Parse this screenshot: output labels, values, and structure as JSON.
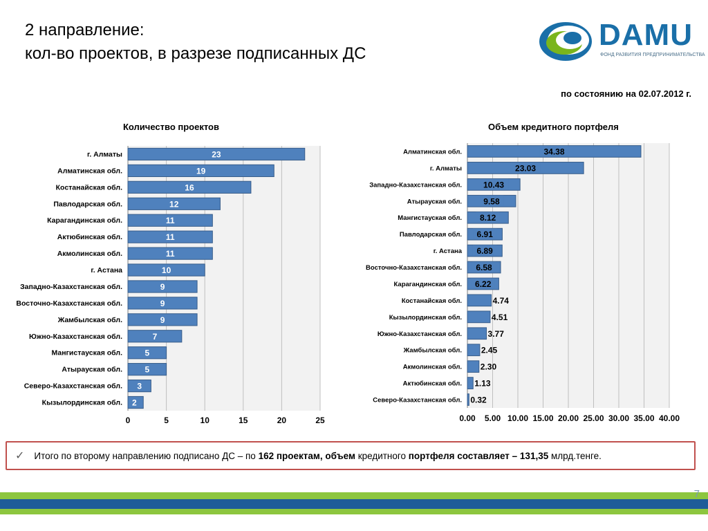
{
  "header": {
    "title_line1": "2  направление:",
    "title_line2": "кол-во проектов,  в разрезе подписанных ДС",
    "date_note": "по состоянию на 02.07.2012 г."
  },
  "logo": {
    "text": "DAMU",
    "subtitle": "ФОНД РАЗВИТИЯ ПРЕДПРИНИМАТЕЛЬСТВА",
    "colors": {
      "blue": "#1a6fa8",
      "green": "#7ab51d"
    }
  },
  "colors": {
    "bar_fill": "#4f81bd",
    "bar_stroke": "#385d8a",
    "plot_bg": "#f2f2f2",
    "grid": "#bfbfbf",
    "summary_border": "#c0504d",
    "band_green": "#8dc63f",
    "band_blue": "#1f5c99"
  },
  "chart_data": [
    {
      "type": "bar",
      "orientation": "horizontal",
      "title": "Количество проектов",
      "categories": [
        "г. Алматы",
        "Алматинская обл.",
        "Костанайская обл.",
        "Павлодарская обл.",
        "Карагандинская обл.",
        "Актюбинская обл.",
        "Акмолинская обл.",
        "г. Астана",
        "Западно-Казахстанская обл.",
        "Восточно-Казахстанская обл.",
        "Жамбылская обл.",
        "Южно-Казахстанская обл.",
        "Мангистауская обл.",
        "Атырауская обл.",
        "Северо-Казахстанская обл.",
        "Кызылординская обл."
      ],
      "values": [
        23,
        19,
        16,
        12,
        11,
        11,
        11,
        10,
        9,
        9,
        9,
        7,
        5,
        5,
        3,
        2
      ],
      "value_labels": [
        "23",
        "19",
        "16",
        "12",
        "11",
        "11",
        "11",
        "10",
        "9",
        "9",
        "9",
        "7",
        "5",
        "5",
        "3",
        "2"
      ],
      "xlim": [
        0,
        25
      ],
      "ticks": [
        "0",
        "5",
        "10",
        "15",
        "20",
        "25"
      ],
      "grid": true
    },
    {
      "type": "bar",
      "orientation": "horizontal",
      "title": "Объем кредитного портфеля",
      "categories": [
        "Алматинская обл.",
        "г. Алматы",
        "Западно-Казахстанская обл.",
        "Атырауская обл.",
        "Мангистауская обл.",
        "Павлодарская обл.",
        "г. Астана",
        "Восточно-Казахстанская обл.",
        "Карагандинская обл.",
        "Костанайская обл.",
        "Кызылординская обл.",
        "Южно-Казахстанская обл.",
        "Жамбылская обл.",
        "Акмолинская обл.",
        "Актюбинская обл.",
        "Северо-Казахстанская обл."
      ],
      "values": [
        34.38,
        23.03,
        10.43,
        9.58,
        8.12,
        6.91,
        6.89,
        6.58,
        6.22,
        4.74,
        4.51,
        3.77,
        2.45,
        2.3,
        1.13,
        0.32
      ],
      "value_labels": [
        "34.38",
        "23.03",
        "10.43",
        "9.58",
        "8.12",
        "6.91",
        "6.89",
        "6.58",
        "6.22",
        "4.74",
        "4.51",
        "3.77",
        "2.45",
        "2.30",
        "1.13",
        "0.32"
      ],
      "xlim": [
        0,
        40
      ],
      "ticks": [
        "0.00",
        "5.00",
        "10.00",
        "15.00",
        "20.00",
        "25.00",
        "30.00",
        "35.00",
        "40.00"
      ],
      "grid": true
    }
  ],
  "summary": {
    "check_icon": "checkmark-icon",
    "part1": "Итого по второму направлению подписано ДС – по ",
    "count": "162  проектам, объем",
    "part2": " кредитного ",
    "bold2": "портфеля составляет – 131,35",
    "part3": " млрд.тенге."
  },
  "page": {
    "number": "7"
  }
}
